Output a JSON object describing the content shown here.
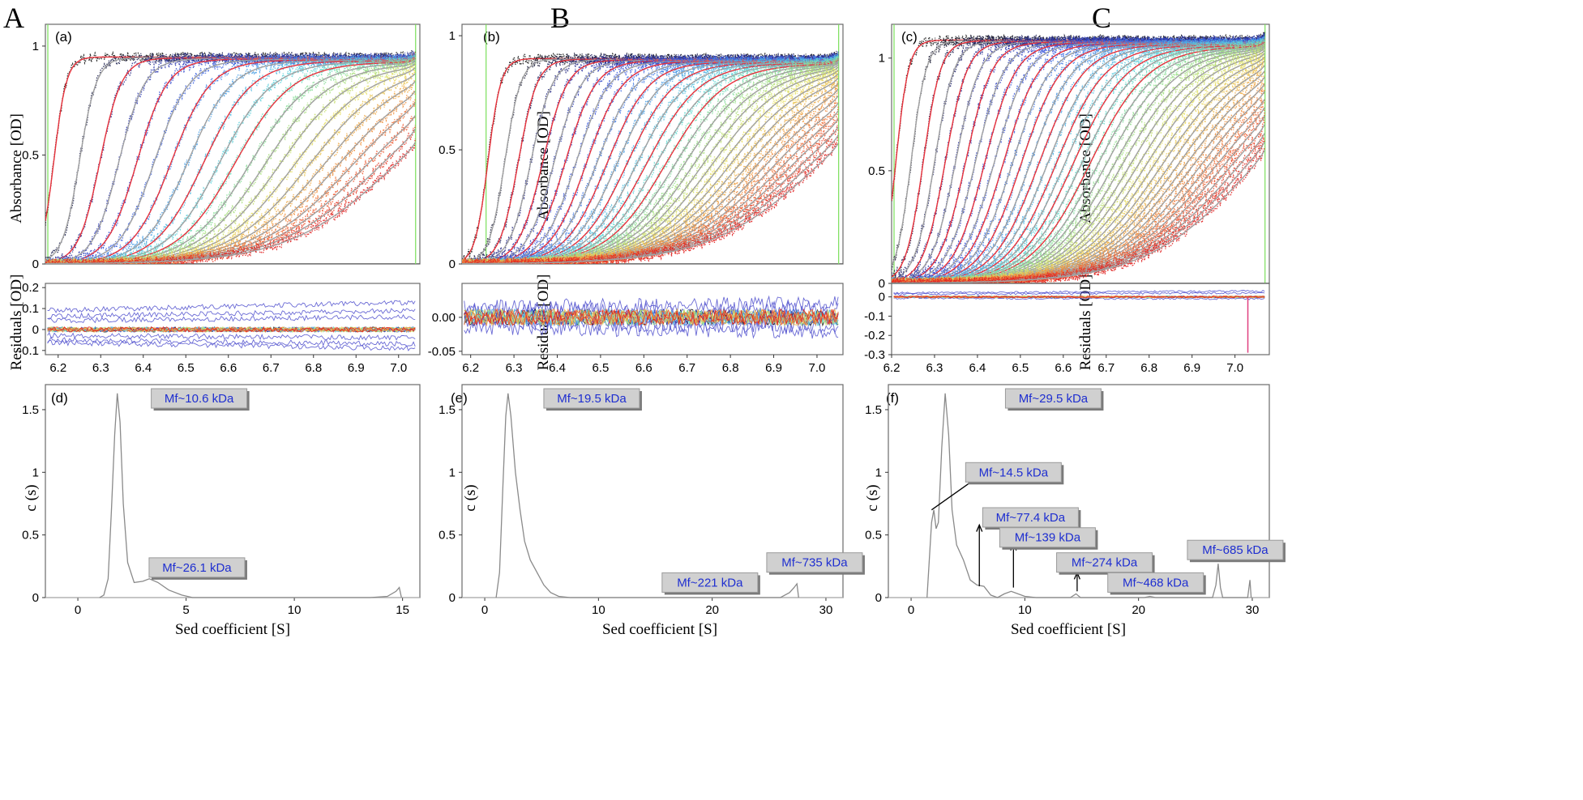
{
  "panels": [
    {
      "letter": "A",
      "top_label": "(a)",
      "bottom_label": "(d)"
    },
    {
      "letter": "B",
      "top_label": "(b)",
      "bottom_label": "(e)"
    },
    {
      "letter": "C",
      "top_label": "(c)",
      "bottom_label": "(f)"
    }
  ],
  "labels": {
    "absorbance_ylabel": "Absorbance [OD]",
    "residuals_ylabel": "Residuals [OD]",
    "cs_ylabel": "c (s)",
    "cs_xlabel": "Sed coefficient [S]"
  },
  "colors": {
    "fit_red": "#e8323c",
    "fit_gray": "#a0a0a0",
    "scan_ramp": [
      "#141414",
      "#2a2f9e",
      "#3b5ae0",
      "#4aa0e6",
      "#5fd8d8",
      "#9be080",
      "#e8e060",
      "#f0a040",
      "#f06030",
      "#e02020"
    ],
    "annotation_text": "#1f2fd0",
    "annotation_box": "#d0d0d0",
    "green_marker": "#7adf5a"
  },
  "chart_data": [
    {
      "id": "a",
      "type": "line",
      "title": "(a)",
      "xlabel": "",
      "ylabel": "Absorbance [OD]",
      "xlim": [
        6.17,
        7.05
      ],
      "ylim": [
        0,
        1.1
      ],
      "xticks": [],
      "yticks": [
        0,
        0.5,
        1
      ],
      "ytick_labels": [
        "0",
        "0.5",
        "1"
      ],
      "plateau": 0.95,
      "n_scans": 22,
      "meniscus": 6.17,
      "bottom": 7.04,
      "boundary_start": 6.19,
      "boundary_end": 6.99
    },
    {
      "id": "b",
      "type": "line",
      "title": "(b)",
      "xlabel": "",
      "ylabel": "Absorbance [OD]",
      "xlim": [
        6.18,
        7.06
      ],
      "ylim": [
        0,
        1.05
      ],
      "xticks": [],
      "yticks": [
        0,
        0.5,
        1
      ],
      "ytick_labels": [
        "0",
        "0.5",
        "1"
      ],
      "plateau": 0.9,
      "n_scans": 34,
      "meniscus": 6.23,
      "bottom": 7.05,
      "boundary_start": 6.24,
      "boundary_end": 7.0
    },
    {
      "id": "c",
      "type": "line",
      "title": "(c)",
      "xlabel": "",
      "ylabel": "Absorbance [OD]",
      "xlim": [
        6.2,
        7.08
      ],
      "ylim": [
        0,
        1.15
      ],
      "xticks": [],
      "yticks": [
        0,
        0.5,
        1
      ],
      "ytick_labels": [
        "0",
        "0.5",
        "1"
      ],
      "plateau": 1.08,
      "n_scans": 42,
      "meniscus": 6.2,
      "bottom": 7.07,
      "boundary_start": 6.21,
      "boundary_end": 7.04
    },
    {
      "id": "res-a",
      "type": "line",
      "title": "",
      "xlabel": "",
      "ylabel": "Residuals [OD]",
      "xlim": [
        6.17,
        7.05
      ],
      "ylim": [
        -0.12,
        0.22
      ],
      "xticks": [
        6.2,
        6.3,
        6.4,
        6.5,
        6.6,
        6.7,
        6.8,
        6.9,
        7.0
      ],
      "xtick_labels": [
        "6.2",
        "6.3",
        "6.4",
        "6.5",
        "6.6",
        "6.7",
        "6.8",
        "6.9",
        "7.0"
      ],
      "yticks": [
        -0.1,
        0,
        0.1,
        0.2
      ],
      "ytick_labels": [
        "-0.1",
        "0",
        "0.1",
        "0.2"
      ],
      "noise_amplitude": 0.012,
      "offset_traces": [
        0.13,
        0.09,
        0.06,
        -0.04,
        -0.07,
        -0.09
      ]
    },
    {
      "id": "res-b",
      "type": "line",
      "title": "",
      "xlabel": "",
      "ylabel": "Residuals [OD]",
      "xlim": [
        6.18,
        7.06
      ],
      "ylim": [
        -0.055,
        0.05
      ],
      "xticks": [
        6.2,
        6.3,
        6.4,
        6.5,
        6.6,
        6.7,
        6.8,
        6.9,
        7.0
      ],
      "xtick_labels": [
        "6.2",
        "6.3",
        "6.4",
        "6.5",
        "6.6",
        "6.7",
        "6.8",
        "6.9",
        "7.0"
      ],
      "yticks": [
        -0.05,
        0
      ],
      "ytick_labels": [
        "-0.05",
        "0.00"
      ],
      "noise_amplitude": 0.012,
      "offset_traces": [
        0.02,
        0.012,
        -0.012,
        -0.02
      ]
    },
    {
      "id": "res-c",
      "type": "line",
      "title": "",
      "xlabel": "",
      "ylabel": "Residuals [OD]",
      "xlim": [
        6.2,
        7.08
      ],
      "ylim": [
        -0.3,
        0.07
      ],
      "xticks": [
        6.2,
        6.3,
        6.4,
        6.5,
        6.6,
        6.7,
        6.8,
        6.9,
        7.0
      ],
      "xtick_labels": [
        "6.2",
        "6.3",
        "6.4",
        "6.5",
        "6.6",
        "6.7",
        "6.8",
        "6.9",
        "7.0"
      ],
      "yticks": [
        -0.3,
        -0.2,
        -0.1,
        0
      ],
      "ytick_labels": [
        "-0.3",
        "-0.2",
        "-0.1",
        "0"
      ],
      "noise_amplitude": 0.005,
      "offset_traces": [
        0.03,
        0.02,
        -0.01
      ],
      "spike": {
        "x": 7.03,
        "y": -0.29
      }
    },
    {
      "id": "d",
      "type": "line",
      "title": "(d)",
      "xlabel": "Sed coefficient [S]",
      "ylabel": "c (s)",
      "xlim": [
        -1.5,
        15.8
      ],
      "ylim": [
        0,
        1.7
      ],
      "xticks": [
        0,
        5,
        10,
        15
      ],
      "xtick_labels": [
        "0",
        "5",
        "10",
        "15"
      ],
      "yticks": [
        0,
        0.5,
        1,
        1.5
      ],
      "ytick_labels": [
        "0",
        "0.5",
        "1",
        "1.5"
      ],
      "series": [
        {
          "points": [
            [
              1.0,
              0
            ],
            [
              1.2,
              0.02
            ],
            [
              1.4,
              0.15
            ],
            [
              1.55,
              0.7
            ],
            [
              1.7,
              1.3
            ],
            [
              1.82,
              1.63
            ],
            [
              1.95,
              1.4
            ],
            [
              2.1,
              0.75
            ],
            [
              2.3,
              0.28
            ],
            [
              2.6,
              0.12
            ],
            [
              3.0,
              0.13
            ],
            [
              3.3,
              0.15
            ],
            [
              3.7,
              0.12
            ],
            [
              4.2,
              0.06
            ],
            [
              4.8,
              0.02
            ],
            [
              5.3,
              0
            ],
            [
              13.5,
              0
            ],
            [
              14.3,
              0.01
            ],
            [
              14.7,
              0.05
            ],
            [
              14.85,
              0.08
            ],
            [
              14.95,
              0
            ]
          ]
        }
      ],
      "annotations": [
        {
          "text": "Mf~10.6 kDa",
          "x": 5.6,
          "y": 1.59
        },
        {
          "text": "Mf~26.1 kDa",
          "x": 5.5,
          "y": 0.24
        }
      ]
    },
    {
      "id": "e",
      "type": "line",
      "title": "(e)",
      "xlabel": "Sed coefficient [S]",
      "ylabel": "c (s)",
      "xlim": [
        -2,
        31.5
      ],
      "ylim": [
        0,
        1.7
      ],
      "xticks": [
        0,
        10,
        20,
        30
      ],
      "xtick_labels": [
        "0",
        "10",
        "20",
        "30"
      ],
      "yticks": [
        0,
        0.5,
        1,
        1.5
      ],
      "ytick_labels": [
        "0",
        "0.5",
        "1",
        "1.5"
      ],
      "series": [
        {
          "points": [
            [
              1.0,
              0
            ],
            [
              1.3,
              0.2
            ],
            [
              1.6,
              0.9
            ],
            [
              1.85,
              1.45
            ],
            [
              2.05,
              1.63
            ],
            [
              2.3,
              1.45
            ],
            [
              2.7,
              1.0
            ],
            [
              3.1,
              0.7
            ],
            [
              3.5,
              0.45
            ],
            [
              4.0,
              0.3
            ],
            [
              4.6,
              0.2
            ],
            [
              5.2,
              0.1
            ],
            [
              5.8,
              0.04
            ],
            [
              6.5,
              0.01
            ],
            [
              7.5,
              0
            ],
            [
              26.0,
              0
            ],
            [
              26.8,
              0.04
            ],
            [
              27.2,
              0.08
            ],
            [
              27.45,
              0.11
            ],
            [
              27.6,
              0
            ]
          ]
        }
      ],
      "annotations": [
        {
          "text": "Mf~19.5 kDa",
          "x": 9.4,
          "y": 1.59
        },
        {
          "text": "Mf~221 kDa",
          "x": 19.8,
          "y": 0.12
        },
        {
          "text": "Mf~735 kDa",
          "x": 29.0,
          "y": 0.28
        }
      ]
    },
    {
      "id": "f",
      "type": "line",
      "title": "(f)",
      "xlabel": "Sed coefficient [S]",
      "ylabel": "c (s)",
      "xlim": [
        -2,
        31.5
      ],
      "ylim": [
        0,
        1.7
      ],
      "xticks": [
        0,
        10,
        20,
        30
      ],
      "xtick_labels": [
        "0",
        "10",
        "20",
        "30"
      ],
      "yticks": [
        0,
        0.5,
        1,
        1.5
      ],
      "ytick_labels": [
        "0",
        "0.5",
        "1",
        "1.5"
      ],
      "series": [
        {
          "points": [
            [
              1.4,
              0
            ],
            [
              1.6,
              0.3
            ],
            [
              1.8,
              0.6
            ],
            [
              2.0,
              0.7
            ],
            [
              2.2,
              0.55
            ],
            [
              2.4,
              0.6
            ],
            [
              2.7,
              1.2
            ],
            [
              3.0,
              1.63
            ],
            [
              3.3,
              1.3
            ],
            [
              3.6,
              0.7
            ],
            [
              4.0,
              0.42
            ],
            [
              4.6,
              0.3
            ],
            [
              5.2,
              0.14
            ],
            [
              5.8,
              0.1
            ],
            [
              6.4,
              0.09
            ],
            [
              7.0,
              0.02
            ],
            [
              7.6,
              0
            ],
            [
              8.2,
              0.03
            ],
            [
              8.8,
              0.05
            ],
            [
              9.4,
              0.03
            ],
            [
              10.0,
              0.01
            ],
            [
              11,
              0
            ],
            [
              14.0,
              0
            ],
            [
              14.5,
              0.03
            ],
            [
              14.9,
              0
            ],
            [
              18,
              0
            ],
            [
              20.5,
              0
            ],
            [
              21,
              0.01
            ],
            [
              21.5,
              0
            ],
            [
              26.5,
              0
            ],
            [
              26.8,
              0.1
            ],
            [
              27.0,
              0.27
            ],
            [
              27.2,
              0.08
            ],
            [
              27.4,
              0
            ],
            [
              29.6,
              0
            ],
            [
              29.8,
              0.14
            ],
            [
              29.9,
              0
            ]
          ]
        }
      ],
      "annotations": [
        {
          "text": "Mf~29.5 kDa",
          "x": 12.5,
          "y": 1.59
        },
        {
          "text": "Mf~14.5 kDa",
          "x": 9.0,
          "y": 1.0
        },
        {
          "text": "Mf~77.4 kDa",
          "x": 10.5,
          "y": 0.64
        },
        {
          "text": "Mf~139 kDa",
          "x": 12.0,
          "y": 0.48
        },
        {
          "text": "Mf~274 kDa",
          "x": 17.0,
          "y": 0.28
        },
        {
          "text": "Mf~468 kDa",
          "x": 21.5,
          "y": 0.12
        },
        {
          "text": "Mf~685 kDa",
          "x": 28.5,
          "y": 0.38
        }
      ],
      "arrows": [
        {
          "from": [
            1.8,
            0.7
          ],
          "to": [
            6.0,
            0.97
          ]
        },
        {
          "from": [
            6.0,
            0.09
          ],
          "to": [
            6.0,
            0.58
          ]
        },
        {
          "from": [
            9.0,
            0.08
          ],
          "to": [
            9.0,
            0.43
          ]
        },
        {
          "from": [
            14.6,
            0.05
          ],
          "to": [
            14.6,
            0.2
          ]
        }
      ]
    }
  ]
}
